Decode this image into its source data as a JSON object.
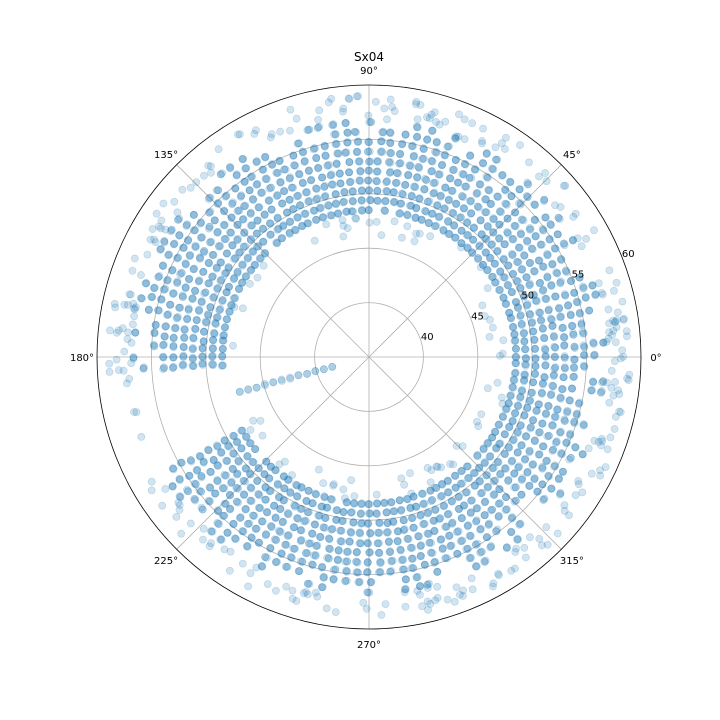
{
  "chart_data": {
    "type": "scatter",
    "projection": "polar",
    "title": "Sx04",
    "theta_unit": "degrees",
    "rlim": [
      35,
      60
    ],
    "r_ticks": [
      40,
      45,
      50,
      55,
      60
    ],
    "r_tick_labels": [
      "40",
      "45",
      "50",
      "55",
      "60"
    ],
    "theta_ticks": [
      0,
      45,
      90,
      135,
      180,
      225,
      270,
      315
    ],
    "theta_tick_labels": [
      "0°",
      "45°",
      "90°",
      "135°",
      "180°",
      "225°",
      "270°",
      "315°"
    ],
    "grid": true,
    "legend": false,
    "color": "#1f77b4",
    "marker_alpha": 0.2,
    "rings": [
      {
        "r": 48.5,
        "density": 0.9
      },
      {
        "r": 49.4,
        "density": 1.0
      },
      {
        "r": 50.3,
        "density": 1.0
      },
      {
        "r": 51.2,
        "density": 1.0
      },
      {
        "r": 52.1,
        "density": 1.0
      },
      {
        "r": 53.0,
        "density": 1.0
      },
      {
        "r": 53.9,
        "density": 1.0
      },
      {
        "r": 54.8,
        "density": 0.95
      },
      {
        "r": 55.7,
        "density": 0.8
      },
      {
        "r": 56.6,
        "density": 0.45
      }
    ],
    "ring_point_spacing_deg": 3.0,
    "gap_ranges_deg": [
      [
        186,
        208
      ]
    ],
    "spoke": {
      "theta": 195,
      "r_values": [
        38.5,
        39.3,
        40.1,
        40.9,
        41.7,
        42.5,
        43.3,
        44.1,
        44.9,
        45.7,
        46.5,
        47.3
      ]
    },
    "outlier_count": 340,
    "outlier_r_range": [
      45.5,
      59.0
    ]
  }
}
